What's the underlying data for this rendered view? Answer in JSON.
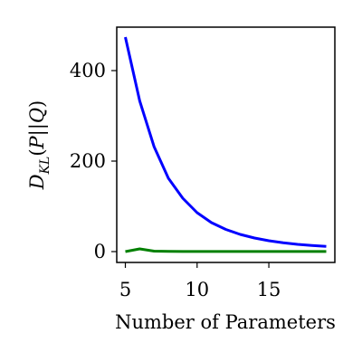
{
  "chart_data": {
    "type": "line",
    "xlabel": "Number of Parameters",
    "ylabel": "D_{KL}(P||Q)",
    "xlim": [
      4.4,
      19.6
    ],
    "ylim": [
      -24,
      496
    ],
    "xticks": [
      5,
      10,
      15
    ],
    "yticks": [
      0,
      200,
      400
    ],
    "grid": false,
    "x": [
      5,
      6,
      7,
      8,
      9,
      10,
      11,
      12,
      13,
      14,
      15,
      16,
      17,
      18,
      19
    ],
    "series": [
      {
        "color": "#0000ff",
        "values": [
          474,
          333,
          232,
          162,
          118,
          86,
          64,
          49,
          38,
          30,
          24,
          19.5,
          16,
          13.5,
          11.5
        ]
      },
      {
        "color": "#008000",
        "values": [
          0,
          6,
          1,
          0.5,
          0.3,
          0.3,
          0.2,
          0.2,
          0.2,
          0.2,
          0.2,
          0.2,
          0.2,
          0.2,
          0.2
        ]
      }
    ]
  }
}
